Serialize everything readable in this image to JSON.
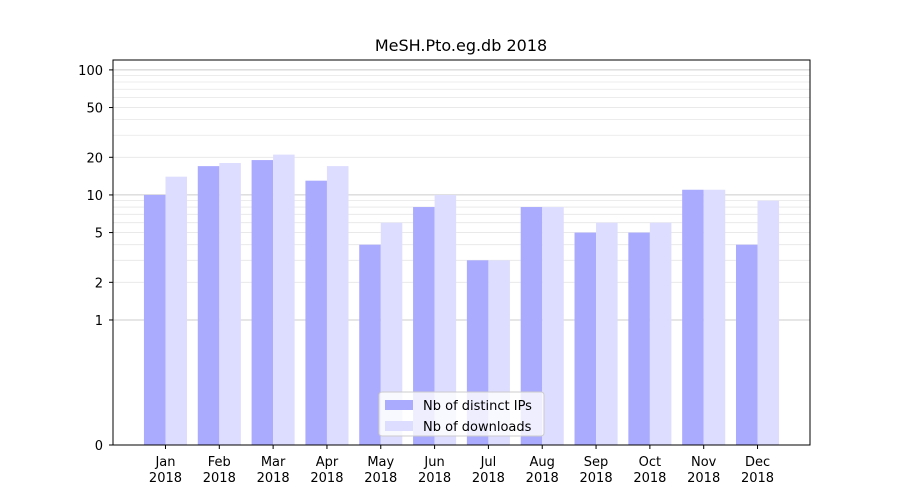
{
  "chart_data": {
    "type": "bar",
    "title": "MeSH.Pto.eg.db 2018",
    "xlabel": "",
    "ylabel": "",
    "yscale": "symlog",
    "ylim": [
      0,
      120
    ],
    "yticks": [
      0,
      1,
      2,
      5,
      10,
      20,
      50,
      100
    ],
    "ytick_labels": [
      "0",
      "1",
      "2",
      "5",
      "10",
      "20",
      "50",
      "100"
    ],
    "categories": [
      {
        "month": "Jan",
        "year": "2018"
      },
      {
        "month": "Feb",
        "year": "2018"
      },
      {
        "month": "Mar",
        "year": "2018"
      },
      {
        "month": "Apr",
        "year": "2018"
      },
      {
        "month": "May",
        "year": "2018"
      },
      {
        "month": "Jun",
        "year": "2018"
      },
      {
        "month": "Jul",
        "year": "2018"
      },
      {
        "month": "Aug",
        "year": "2018"
      },
      {
        "month": "Sep",
        "year": "2018"
      },
      {
        "month": "Oct",
        "year": "2018"
      },
      {
        "month": "Nov",
        "year": "2018"
      },
      {
        "month": "Dec",
        "year": "2018"
      }
    ],
    "series": [
      {
        "name": "Nb of distinct IPs",
        "color": "#aaaaff",
        "values": [
          10,
          17,
          19,
          13,
          4,
          8,
          3,
          8,
          5,
          5,
          11,
          4
        ]
      },
      {
        "name": "Nb of downloads",
        "color": "#ddddff",
        "values": [
          14,
          18,
          21,
          17,
          6,
          10,
          3,
          8,
          6,
          6,
          11,
          9
        ]
      }
    ],
    "grid": true,
    "legend_position": "bottom-center"
  }
}
